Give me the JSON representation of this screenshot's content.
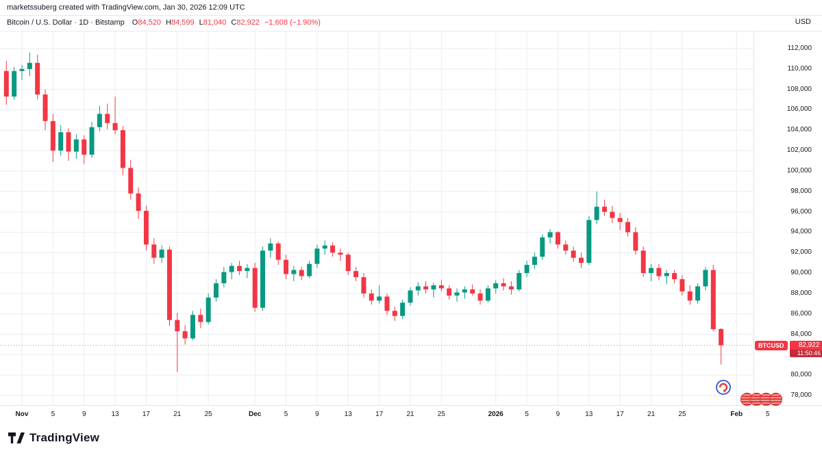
{
  "attribution": "marketssuberg created with TradingView.com, Jan 30, 2026 12:09 UTC",
  "header": {
    "title": "Bitcoin / U.S. Dollar · 1D · Bitstamp",
    "ohlc_keys": {
      "o": "O",
      "h": "H",
      "l": "L",
      "c": "C"
    },
    "ohlc": {
      "open": "84,520",
      "high": "84,599",
      "low": "81,040",
      "close": "82,922",
      "change": "−1,608 (−1.90%)"
    }
  },
  "price_scale": {
    "unit": "USD"
  },
  "price_label": {
    "symbol": "BTCUSD",
    "price": "82,922",
    "countdown": "11:50:46"
  },
  "footer": {
    "brand": "TradingView"
  },
  "chart_data": {
    "type": "candlestick",
    "symbol": "BTCUSD",
    "exchange": "Bitstamp",
    "interval": "1D",
    "last_price": 82922,
    "y_axis": {
      "min": 78000,
      "max": 112000,
      "step": 2000,
      "unit": "USD"
    },
    "x_ticks": [
      {
        "label": "Nov",
        "day": 0,
        "major": true
      },
      {
        "label": "5",
        "day": 4
      },
      {
        "label": "9",
        "day": 8
      },
      {
        "label": "13",
        "day": 12
      },
      {
        "label": "17",
        "day": 16
      },
      {
        "label": "21",
        "day": 20
      },
      {
        "label": "25",
        "day": 24
      },
      {
        "label": "Dec",
        "day": 30,
        "major": true
      },
      {
        "label": "5",
        "day": 34
      },
      {
        "label": "9",
        "day": 38
      },
      {
        "label": "13",
        "day": 42
      },
      {
        "label": "17",
        "day": 46
      },
      {
        "label": "21",
        "day": 50
      },
      {
        "label": "25",
        "day": 54
      },
      {
        "label": "2026",
        "day": 61,
        "major": true
      },
      {
        "label": "5",
        "day": 65
      },
      {
        "label": "9",
        "day": 69
      },
      {
        "label": "13",
        "day": 73
      },
      {
        "label": "17",
        "day": 77
      },
      {
        "label": "21",
        "day": 81
      },
      {
        "label": "25",
        "day": 85
      },
      {
        "label": "Feb",
        "day": 92,
        "major": true
      },
      {
        "label": "5",
        "day": 96
      }
    ],
    "start_day": -2,
    "x_axis_note": "day 0 = Nov 1; one candle per day from Oct 30 to Jan 30",
    "colors": {
      "up": "#089981",
      "down": "#f23645",
      "grid": "#e9edf3"
    },
    "candles": [
      [
        109800,
        110800,
        106500,
        107300
      ],
      [
        107300,
        110200,
        107000,
        109800
      ],
      [
        109800,
        110400,
        108900,
        110000
      ],
      [
        110000,
        111600,
        109300,
        110600
      ],
      [
        110600,
        111400,
        107000,
        107500
      ],
      [
        107500,
        108000,
        104000,
        104900
      ],
      [
        104900,
        105600,
        100900,
        102000
      ],
      [
        102000,
        104500,
        101500,
        103800
      ],
      [
        103800,
        104200,
        101000,
        101900
      ],
      [
        101900,
        103600,
        101200,
        103100
      ],
      [
        103100,
        103500,
        100700,
        101600
      ],
      [
        101600,
        104800,
        101300,
        104300
      ],
      [
        104300,
        106400,
        103900,
        105600
      ],
      [
        105600,
        106600,
        104100,
        104700
      ],
      [
        104700,
        107300,
        103600,
        104000
      ],
      [
        104000,
        104400,
        99600,
        100300
      ],
      [
        100300,
        101100,
        97200,
        97800
      ],
      [
        97800,
        98400,
        95300,
        96100
      ],
      [
        96100,
        96600,
        92200,
        92800
      ],
      [
        92800,
        93400,
        90900,
        91500
      ],
      [
        91500,
        92700,
        91000,
        92300
      ],
      [
        92300,
        92600,
        84800,
        85400
      ],
      [
        85400,
        86100,
        80300,
        84300
      ],
      [
        84300,
        84900,
        83000,
        83600
      ],
      [
        83600,
        86300,
        83400,
        85900
      ],
      [
        85900,
        86500,
        84600,
        85200
      ],
      [
        85200,
        88000,
        85000,
        87600
      ],
      [
        87600,
        89400,
        87200,
        89000
      ],
      [
        89000,
        90600,
        88600,
        90100
      ],
      [
        90100,
        91000,
        89400,
        90700
      ],
      [
        90700,
        91200,
        89800,
        90200
      ],
      [
        90200,
        90900,
        89500,
        90500
      ],
      [
        90500,
        91000,
        86200,
        86600
      ],
      [
        86600,
        92600,
        86300,
        92200
      ],
      [
        92200,
        93400,
        91500,
        92900
      ],
      [
        92900,
        93100,
        90800,
        91300
      ],
      [
        91300,
        91800,
        89400,
        89900
      ],
      [
        89900,
        90700,
        89200,
        90300
      ],
      [
        90300,
        90600,
        89300,
        89700
      ],
      [
        89700,
        91200,
        89500,
        90900
      ],
      [
        90900,
        92800,
        90500,
        92400
      ],
      [
        92400,
        93200,
        91800,
        92700
      ],
      [
        92700,
        93000,
        91600,
        92000
      ],
      [
        92000,
        92400,
        91200,
        91800
      ],
      [
        91800,
        92000,
        89800,
        90200
      ],
      [
        90200,
        90600,
        89200,
        89600
      ],
      [
        89600,
        90000,
        87600,
        88000
      ],
      [
        88000,
        88400,
        86900,
        87300
      ],
      [
        87300,
        88800,
        87000,
        87700
      ],
      [
        87700,
        88000,
        85900,
        86300
      ],
      [
        86300,
        86700,
        85300,
        85800
      ],
      [
        85800,
        87400,
        85500,
        87100
      ],
      [
        87100,
        88600,
        86800,
        88300
      ],
      [
        88300,
        89100,
        87800,
        88700
      ],
      [
        88700,
        89200,
        88000,
        88400
      ],
      [
        88400,
        89000,
        87600,
        88800
      ],
      [
        88800,
        89300,
        88200,
        88500
      ],
      [
        88500,
        88800,
        87400,
        87800
      ],
      [
        87800,
        88500,
        87200,
        88100
      ],
      [
        88100,
        88700,
        87500,
        88400
      ],
      [
        88400,
        88900,
        87800,
        88000
      ],
      [
        88000,
        88400,
        86900,
        87300
      ],
      [
        87300,
        88800,
        87100,
        88500
      ],
      [
        88500,
        89300,
        88000,
        89000
      ],
      [
        89000,
        89500,
        88300,
        88700
      ],
      [
        88700,
        89200,
        87900,
        88400
      ],
      [
        88400,
        90300,
        88200,
        90000
      ],
      [
        90000,
        91200,
        89600,
        90800
      ],
      [
        90800,
        92000,
        90400,
        91600
      ],
      [
        91600,
        93800,
        91300,
        93500
      ],
      [
        93500,
        94300,
        92900,
        94000
      ],
      [
        94000,
        94100,
        92400,
        92800
      ],
      [
        92800,
        93200,
        91800,
        92200
      ],
      [
        92200,
        92600,
        91100,
        91500
      ],
      [
        91500,
        92000,
        90500,
        91000
      ],
      [
        91000,
        95600,
        90800,
        95200
      ],
      [
        95200,
        98000,
        94800,
        96500
      ],
      [
        96500,
        97200,
        95600,
        96000
      ],
      [
        96000,
        96600,
        94900,
        95400
      ],
      [
        95400,
        95900,
        94200,
        95000
      ],
      [
        95000,
        95400,
        93600,
        94000
      ],
      [
        94000,
        94500,
        91800,
        92200
      ],
      [
        92200,
        92600,
        89600,
        90000
      ],
      [
        90000,
        90900,
        89200,
        90500
      ],
      [
        90500,
        90900,
        89300,
        89700
      ],
      [
        89700,
        90300,
        88900,
        90000
      ],
      [
        90000,
        90300,
        89000,
        89400
      ],
      [
        89400,
        89800,
        87800,
        88200
      ],
      [
        88200,
        88800,
        86900,
        87300
      ],
      [
        87300,
        89000,
        87000,
        88700
      ],
      [
        88700,
        90600,
        88300,
        90300
      ],
      [
        90300,
        90800,
        84300,
        84500
      ],
      [
        84520,
        84599,
        81040,
        82922
      ]
    ]
  }
}
